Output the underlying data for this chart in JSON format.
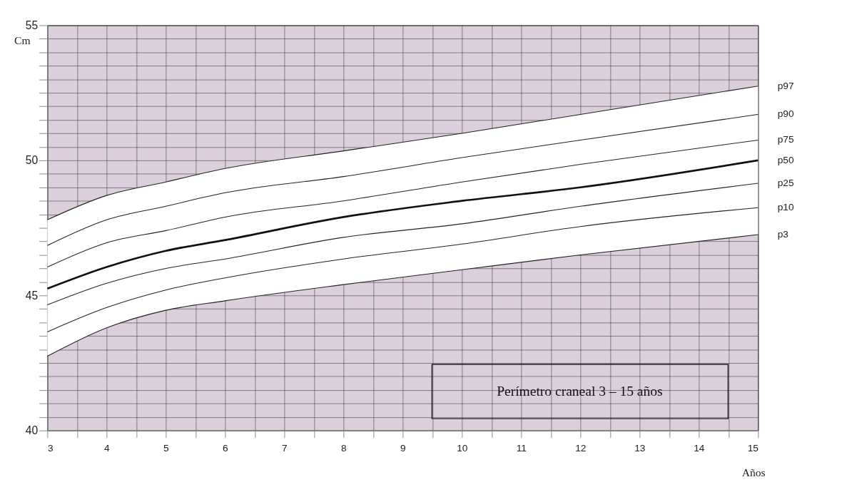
{
  "chart_data": {
    "type": "line",
    "x": [
      3,
      4,
      5,
      6,
      8,
      10,
      12,
      15
    ],
    "series": [
      {
        "name": "p97",
        "color": "#222222",
        "values": [
          47.8,
          48.7,
          49.2,
          49.7,
          50.35,
          51.0,
          51.7,
          52.75
        ]
      },
      {
        "name": "p90",
        "color": "#222222",
        "values": [
          46.85,
          47.8,
          48.3,
          48.8,
          49.4,
          50.1,
          50.75,
          51.7
        ]
      },
      {
        "name": "p75",
        "color": "#222222",
        "values": [
          46.05,
          46.95,
          47.4,
          47.9,
          48.5,
          49.2,
          49.85,
          50.75
        ]
      },
      {
        "name": "p50",
        "color": "#111111",
        "values": [
          45.25,
          46.05,
          46.65,
          47.05,
          47.9,
          48.5,
          49.0,
          50.0
        ],
        "lower": [
          42.75,
          43.8,
          44.45,
          44.8,
          45.4,
          45.95,
          46.5,
          47.25
        ],
        "upper": [
          47.8,
          48.7,
          49.2,
          49.7,
          50.35,
          51.0,
          51.7,
          52.75
        ]
      },
      {
        "name": "p25",
        "color": "#222222",
        "values": [
          44.65,
          45.45,
          46.0,
          46.35,
          47.15,
          47.65,
          48.3,
          49.15
        ]
      },
      {
        "name": "p10",
        "color": "#222222",
        "values": [
          43.65,
          44.55,
          45.2,
          45.65,
          46.35,
          46.9,
          47.55,
          48.25
        ]
      },
      {
        "name": "p3",
        "color": "#222222",
        "values": [
          42.75,
          43.8,
          44.45,
          44.8,
          45.4,
          45.95,
          46.5,
          47.25
        ]
      }
    ],
    "xlim": [
      3,
      15
    ],
    "ylim": [
      40,
      55
    ],
    "xticks": [
      3,
      {
        "value": 3.5,
        "label": null
      },
      4,
      {
        "value": 4.5,
        "label": null
      },
      5,
      {
        "value": 5.5,
        "label": null
      },
      6,
      {
        "value": 6.5,
        "label": null
      },
      7,
      {
        "value": 7.5,
        "label": null
      },
      8,
      {
        "value": 8.5,
        "label": null
      },
      9,
      {
        "value": 9.5,
        "label": null
      },
      10,
      {
        "value": 10.5,
        "label": null
      },
      11,
      {
        "value": 11.5,
        "label": null
      },
      12,
      {
        "value": 12.5,
        "label": null
      },
      13,
      {
        "value": 13.5,
        "label": null
      },
      14,
      {
        "value": 14.5,
        "label": null
      },
      15
    ],
    "yticks": [
      40,
      {
        "value": 40.5,
        "label": null
      },
      {
        "value": 41,
        "label": null
      },
      {
        "value": 41.5,
        "label": null
      },
      {
        "value": 42,
        "label": null
      },
      {
        "value": 42.5,
        "label": null
      },
      {
        "value": 43,
        "label": null
      },
      {
        "value": 43.5,
        "label": null
      },
      {
        "value": 44,
        "label": null
      },
      {
        "value": 44.5,
        "label": null
      },
      45,
      {
        "value": 45.5,
        "label": null
      },
      {
        "value": 46,
        "label": null
      },
      {
        "value": 46.5,
        "label": null
      },
      {
        "value": 47,
        "label": null
      },
      {
        "value": 47.5,
        "label": null
      },
      {
        "value": 48,
        "label": null
      },
      {
        "value": 48.5,
        "label": null
      },
      {
        "value": 49,
        "label": null
      },
      {
        "value": 49.5,
        "label": null
      },
      50,
      {
        "value": 50.5,
        "label": null
      },
      {
        "value": 51,
        "label": null
      },
      {
        "value": 51.5,
        "label": null
      },
      {
        "value": 52,
        "label": null
      },
      {
        "value": 52.5,
        "label": null
      },
      {
        "value": 53,
        "label": null
      },
      {
        "value": 53.5,
        "label": null
      },
      {
        "value": 54,
        "label": null
      },
      {
        "value": 54.5,
        "label": null
      },
      55
    ],
    "xlabel": "Años",
    "ylabel": "Cm",
    "grid": true,
    "legend": false,
    "marker": "none",
    "line_style": "solid",
    "annotations": [
      "Perímetro craneal  3 – 15 años"
    ]
  }
}
